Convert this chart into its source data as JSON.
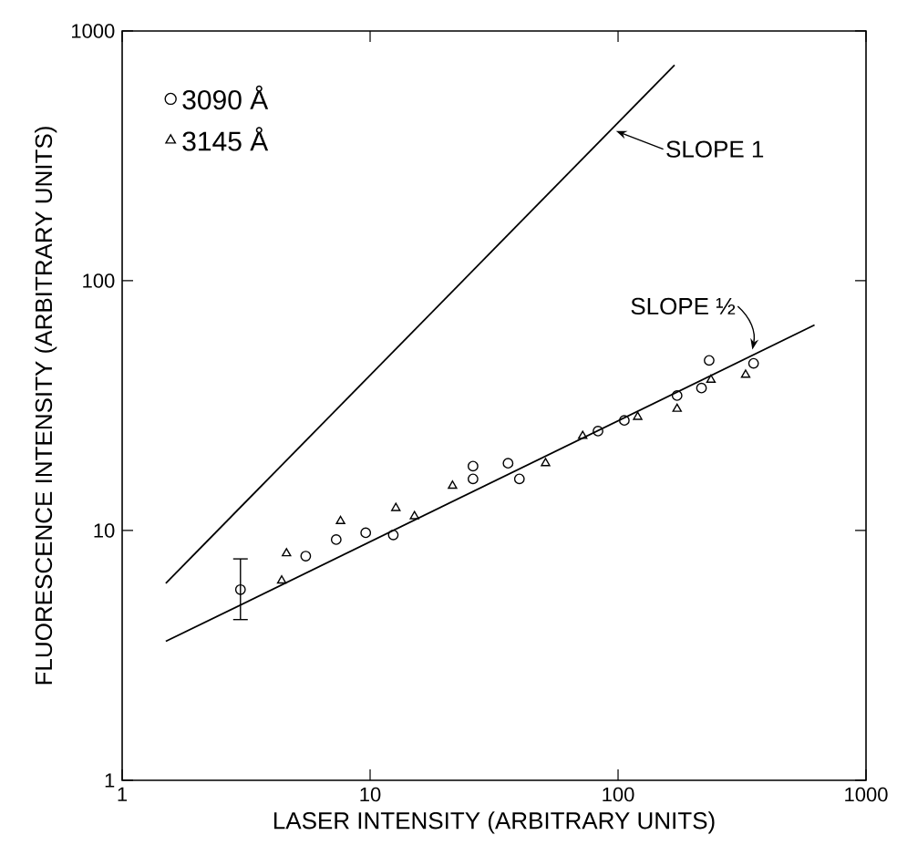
{
  "chart_data": {
    "type": "scatter",
    "xlabel": "LASER INTENSITY (ARBITRARY UNITS)",
    "ylabel": "FLUORESCENCE INTENSITY (ARBITRARY UNITS)",
    "log": "xy",
    "grid": false,
    "legend": "top left",
    "xlim": [
      1,
      1000
    ],
    "ylim": [
      1,
      1000
    ],
    "xticks": [
      1,
      10,
      100,
      1000
    ],
    "yticks": [
      1,
      10,
      100,
      1000
    ],
    "series": [
      {
        "name": "3090 Å",
        "color": "#000000",
        "marker": "circle",
        "x": [
          3,
          5.5,
          7.3,
          9.6,
          12.4,
          26,
          26,
          36,
          40,
          83,
          106,
          173,
          217,
          233,
          352
        ],
        "values": [
          5.8,
          7.9,
          9.2,
          9.8,
          9.6,
          18.1,
          16.1,
          18.6,
          16.1,
          25,
          27.6,
          34.7,
          37.2,
          48,
          46.7
        ],
        "errors": [
          [
            4.4,
            7.7
          ],
          null,
          null,
          null,
          null,
          null,
          null,
          null,
          null,
          null,
          null,
          null,
          null,
          null,
          null
        ]
      },
      {
        "name": "3145 Å",
        "color": "#000000",
        "marker": "triangle",
        "x": [
          4.4,
          4.6,
          7.6,
          12.7,
          15.1,
          21.5,
          51,
          72,
          120,
          173,
          237,
          327
        ],
        "values": [
          6.3,
          8.1,
          10.9,
          12.3,
          11.4,
          15.1,
          18.6,
          23.9,
          28.5,
          30.7,
          40.1,
          42
        ]
      },
      {
        "type": "line",
        "color": "#000000",
        "x": [
          1.5,
          169
        ],
        "values": [
          6.15,
          730
        ]
      },
      {
        "type": "line",
        "color": "#000000",
        "x": [
          1.5,
          620
        ],
        "values": [
          3.6,
          66.5
        ]
      }
    ],
    "annotations": [
      {
        "text": "SLOPE 1",
        "x": 98,
        "y": 398
      },
      {
        "text": "SLOPE ½",
        "x": 348,
        "y": 53
      }
    ]
  }
}
